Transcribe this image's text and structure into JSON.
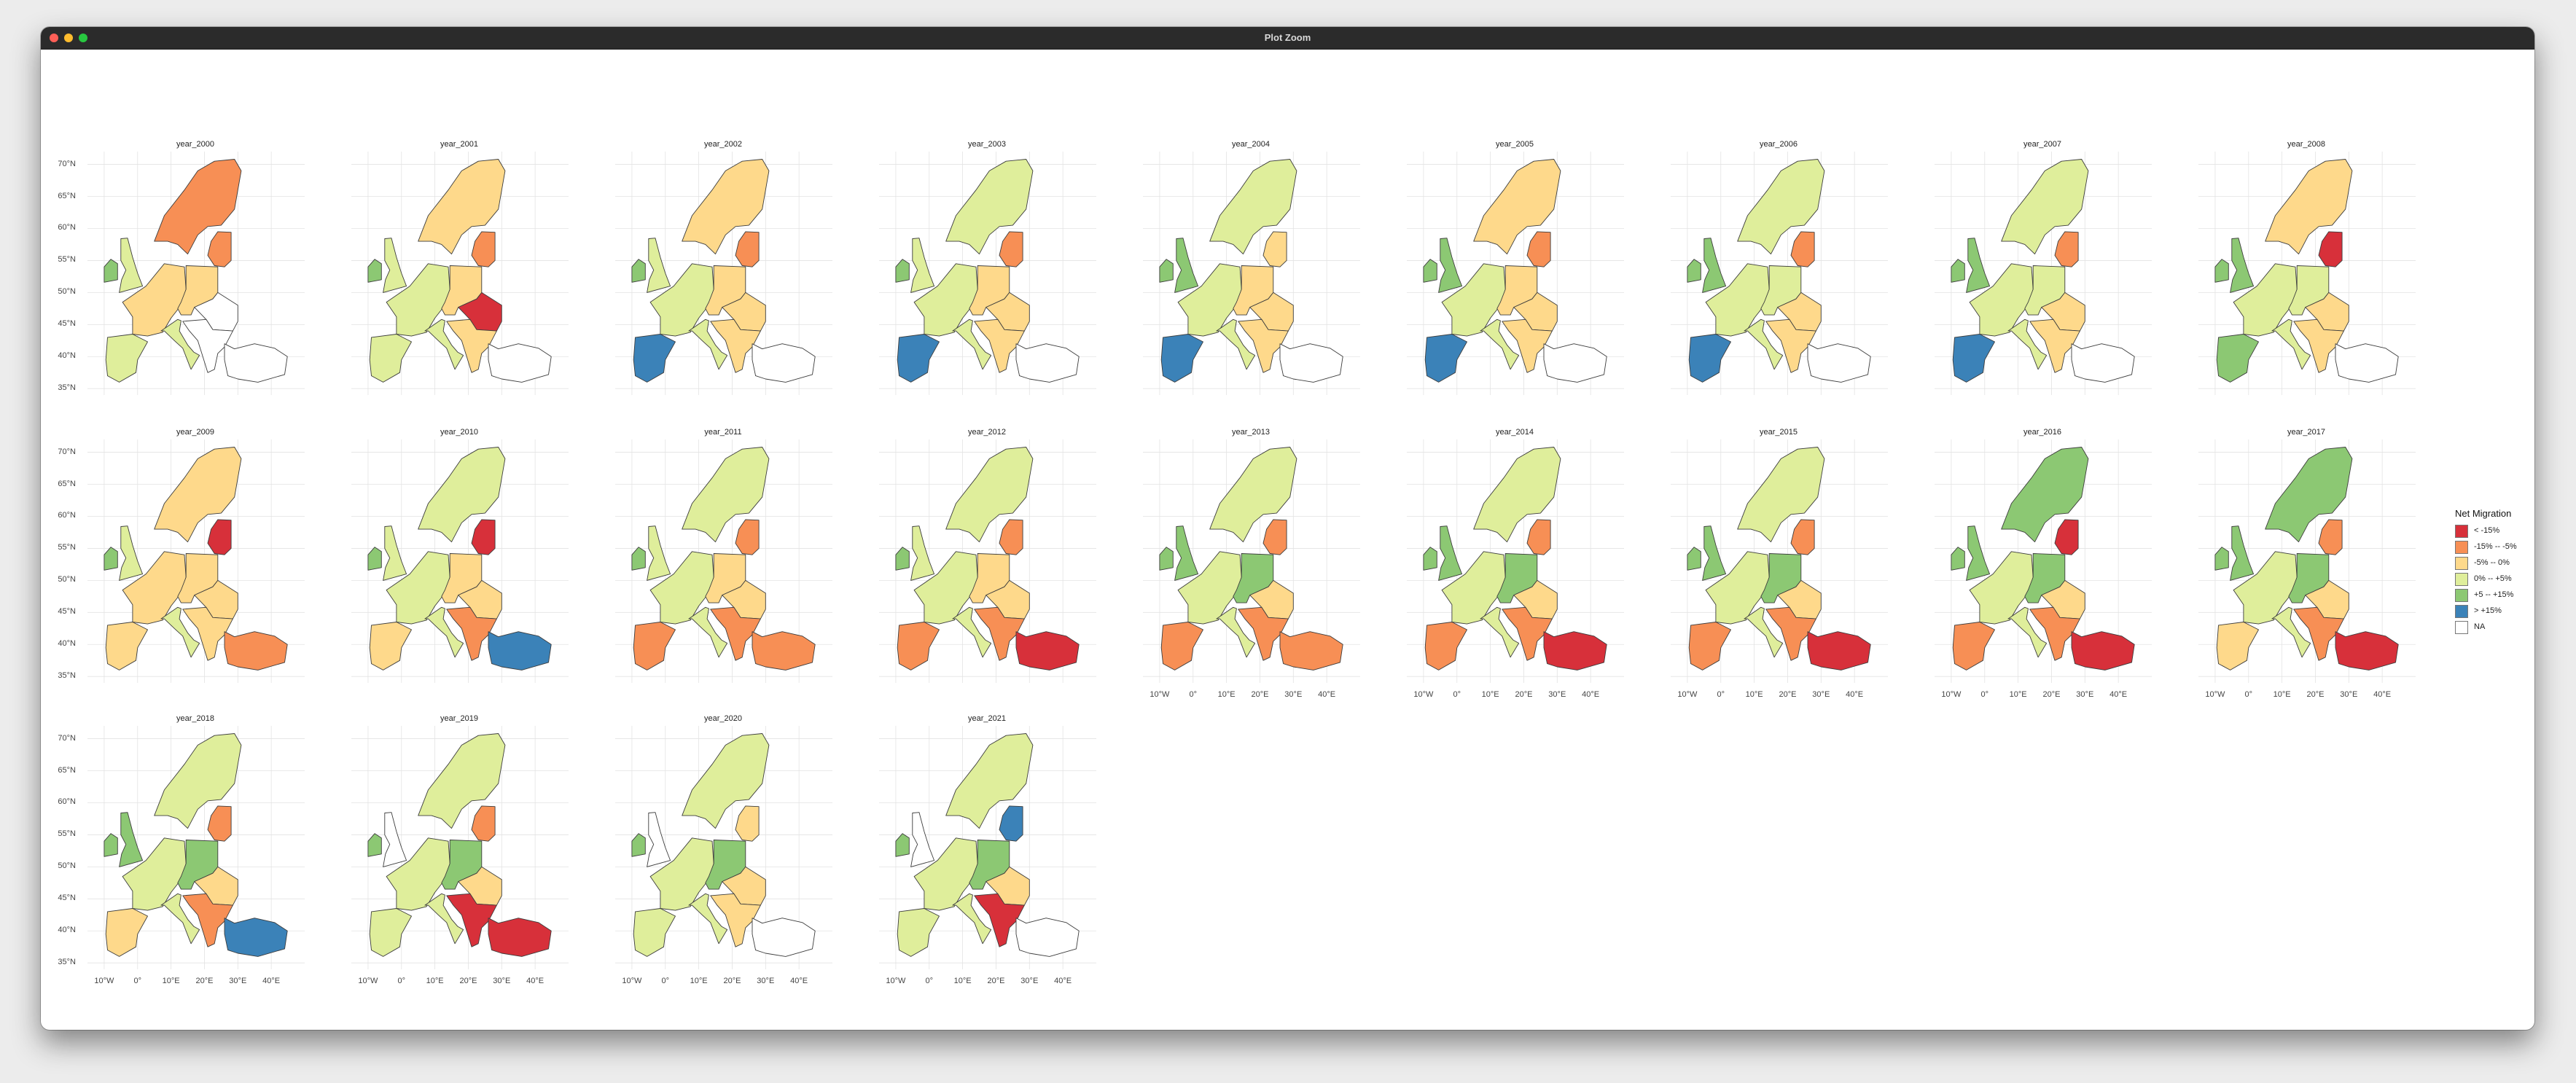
{
  "window": {
    "title": "Plot Zoom"
  },
  "palette": {
    "lt_m15": "#d7303a",
    "m15_m5": "#f78f55",
    "m5_0": "#fed98b",
    "p0_p5": "#dfee9b",
    "p5_p15": "#8cc873",
    "gt_p15": "#3b82b8",
    "na": "#ffffff"
  },
  "chart_data": {
    "type": "choropleth-facets",
    "panels": [
      {
        "title": "year_2000",
        "fill": {
          "north": "m15_m5",
          "baltic": "m15_m5",
          "west": "m5_0",
          "iberia": "p0_p5",
          "centre": "m5_0",
          "east": "na",
          "balkans": "na",
          "turkey": "na",
          "uk": "p0_p5"
        }
      },
      {
        "title": "year_2001",
        "fill": {
          "north": "m5_0",
          "baltic": "m15_m5",
          "west": "p0_p5",
          "iberia": "p0_p5",
          "centre": "m5_0",
          "east": "lt_m15",
          "balkans": "m5_0",
          "turkey": "na",
          "uk": "p0_p5"
        }
      },
      {
        "title": "year_2002",
        "fill": {
          "north": "m5_0",
          "baltic": "m15_m5",
          "west": "p0_p5",
          "iberia": "gt_p15",
          "centre": "m5_0",
          "east": "m5_0",
          "balkans": "m5_0",
          "turkey": "na",
          "uk": "p0_p5"
        }
      },
      {
        "title": "year_2003",
        "fill": {
          "north": "p0_p5",
          "baltic": "m15_m5",
          "west": "p0_p5",
          "iberia": "gt_p15",
          "centre": "m5_0",
          "east": "m5_0",
          "balkans": "m5_0",
          "turkey": "na",
          "uk": "p0_p5"
        }
      },
      {
        "title": "year_2004",
        "fill": {
          "north": "p0_p5",
          "baltic": "m5_0",
          "west": "p0_p5",
          "iberia": "gt_p15",
          "centre": "m5_0",
          "east": "m5_0",
          "balkans": "m5_0",
          "turkey": "na",
          "uk": "p5_p15"
        }
      },
      {
        "title": "year_2005",
        "fill": {
          "north": "m5_0",
          "baltic": "m15_m5",
          "west": "p0_p5",
          "iberia": "gt_p15",
          "centre": "m5_0",
          "east": "m5_0",
          "balkans": "m5_0",
          "turkey": "na",
          "uk": "p5_p15"
        }
      },
      {
        "title": "year_2006",
        "fill": {
          "north": "p0_p5",
          "baltic": "m15_m5",
          "west": "p0_p5",
          "iberia": "gt_p15",
          "centre": "p0_p5",
          "east": "m5_0",
          "balkans": "m5_0",
          "turkey": "na",
          "uk": "p5_p15"
        }
      },
      {
        "title": "year_2007",
        "fill": {
          "north": "p0_p5",
          "baltic": "m15_m5",
          "west": "p0_p5",
          "iberia": "gt_p15",
          "centre": "p0_p5",
          "east": "m5_0",
          "balkans": "m5_0",
          "turkey": "na",
          "uk": "p5_p15"
        }
      },
      {
        "title": "year_2008",
        "fill": {
          "north": "m5_0",
          "baltic": "lt_m15",
          "west": "p0_p5",
          "iberia": "p5_p15",
          "centre": "p0_p5",
          "east": "m5_0",
          "balkans": "m5_0",
          "turkey": "na",
          "uk": "p5_p15"
        }
      },
      {
        "title": "year_2009",
        "fill": {
          "north": "m5_0",
          "baltic": "lt_m15",
          "west": "m5_0",
          "iberia": "m5_0",
          "centre": "m5_0",
          "east": "m5_0",
          "balkans": "m5_0",
          "turkey": "m15_m5",
          "uk": "p0_p5"
        }
      },
      {
        "title": "year_2010",
        "fill": {
          "north": "p0_p5",
          "baltic": "lt_m15",
          "west": "p0_p5",
          "iberia": "m5_0",
          "centre": "m5_0",
          "east": "m5_0",
          "balkans": "m15_m5",
          "turkey": "gt_p15",
          "uk": "p0_p5"
        }
      },
      {
        "title": "year_2011",
        "fill": {
          "north": "p0_p5",
          "baltic": "m15_m5",
          "west": "p0_p5",
          "iberia": "m15_m5",
          "centre": "m5_0",
          "east": "m5_0",
          "balkans": "m15_m5",
          "turkey": "m15_m5",
          "uk": "p0_p5"
        }
      },
      {
        "title": "year_2012",
        "fill": {
          "north": "p0_p5",
          "baltic": "m15_m5",
          "west": "p0_p5",
          "iberia": "m15_m5",
          "centre": "m5_0",
          "east": "m5_0",
          "balkans": "m15_m5",
          "turkey": "lt_m15",
          "uk": "p0_p5"
        }
      },
      {
        "title": "year_2013",
        "fill": {
          "north": "p0_p5",
          "baltic": "m15_m5",
          "west": "p0_p5",
          "iberia": "m15_m5",
          "centre": "p5_p15",
          "east": "m5_0",
          "balkans": "m15_m5",
          "turkey": "m15_m5",
          "uk": "p5_p15"
        }
      },
      {
        "title": "year_2014",
        "fill": {
          "north": "p0_p5",
          "baltic": "m15_m5",
          "west": "p0_p5",
          "iberia": "m15_m5",
          "centre": "p5_p15",
          "east": "m5_0",
          "balkans": "m15_m5",
          "turkey": "lt_m15",
          "uk": "p5_p15"
        }
      },
      {
        "title": "year_2015",
        "fill": {
          "north": "p0_p5",
          "baltic": "m15_m5",
          "west": "p0_p5",
          "iberia": "m15_m5",
          "centre": "p5_p15",
          "east": "m5_0",
          "balkans": "m15_m5",
          "turkey": "lt_m15",
          "uk": "p5_p15"
        }
      },
      {
        "title": "year_2016",
        "fill": {
          "north": "p5_p15",
          "baltic": "lt_m15",
          "west": "p0_p5",
          "iberia": "m15_m5",
          "centre": "p5_p15",
          "east": "m5_0",
          "balkans": "m15_m5",
          "turkey": "lt_m15",
          "uk": "p5_p15"
        }
      },
      {
        "title": "year_2017",
        "fill": {
          "north": "p5_p15",
          "baltic": "m15_m5",
          "west": "p0_p5",
          "iberia": "m5_0",
          "centre": "p5_p15",
          "east": "m5_0",
          "balkans": "m15_m5",
          "turkey": "lt_m15",
          "uk": "p5_p15"
        }
      },
      {
        "title": "year_2018",
        "fill": {
          "north": "p0_p5",
          "baltic": "m15_m5",
          "west": "p0_p5",
          "iberia": "m5_0",
          "centre": "p5_p15",
          "east": "m5_0",
          "balkans": "m15_m5",
          "turkey": "gt_p15",
          "uk": "p5_p15"
        }
      },
      {
        "title": "year_2019",
        "fill": {
          "north": "p0_p5",
          "baltic": "m15_m5",
          "west": "p0_p5",
          "iberia": "p0_p5",
          "centre": "p5_p15",
          "east": "m5_0",
          "balkans": "lt_m15",
          "turkey": "lt_m15",
          "uk": "na"
        }
      },
      {
        "title": "year_2020",
        "fill": {
          "north": "p0_p5",
          "baltic": "m5_0",
          "west": "p0_p5",
          "iberia": "p0_p5",
          "centre": "p5_p15",
          "east": "m5_0",
          "balkans": "m5_0",
          "turkey": "na",
          "uk": "na"
        }
      },
      {
        "title": "year_2021",
        "fill": {
          "north": "p0_p5",
          "baltic": "gt_p15",
          "west": "p0_p5",
          "iberia": "p0_p5",
          "centre": "p5_p15",
          "east": "m5_0",
          "balkans": "lt_m15",
          "turkey": "na",
          "uk": "na"
        }
      }
    ],
    "y_ticks": [
      "70°N",
      "65°N",
      "60°N",
      "55°N",
      "50°N",
      "45°N",
      "40°N",
      "35°N"
    ],
    "x_ticks": [
      "10°W",
      "0°",
      "10°E",
      "20°E",
      "30°E",
      "40°E"
    ],
    "legend": {
      "title": "Net Migration",
      "placement": "right",
      "items": [
        {
          "label": "< -15%",
          "key": "lt_m15"
        },
        {
          "label": "-15% -- -5%",
          "key": "m15_m5"
        },
        {
          "label": "-5% -- 0%",
          "key": "m5_0"
        },
        {
          "label": "0% -- +5%",
          "key": "p0_p5"
        },
        {
          "label": "+5 -- +15%",
          "key": "p5_p15"
        },
        {
          "label": "> +15%",
          "key": "gt_p15"
        },
        {
          "label": "NA",
          "key": "na"
        }
      ]
    }
  }
}
